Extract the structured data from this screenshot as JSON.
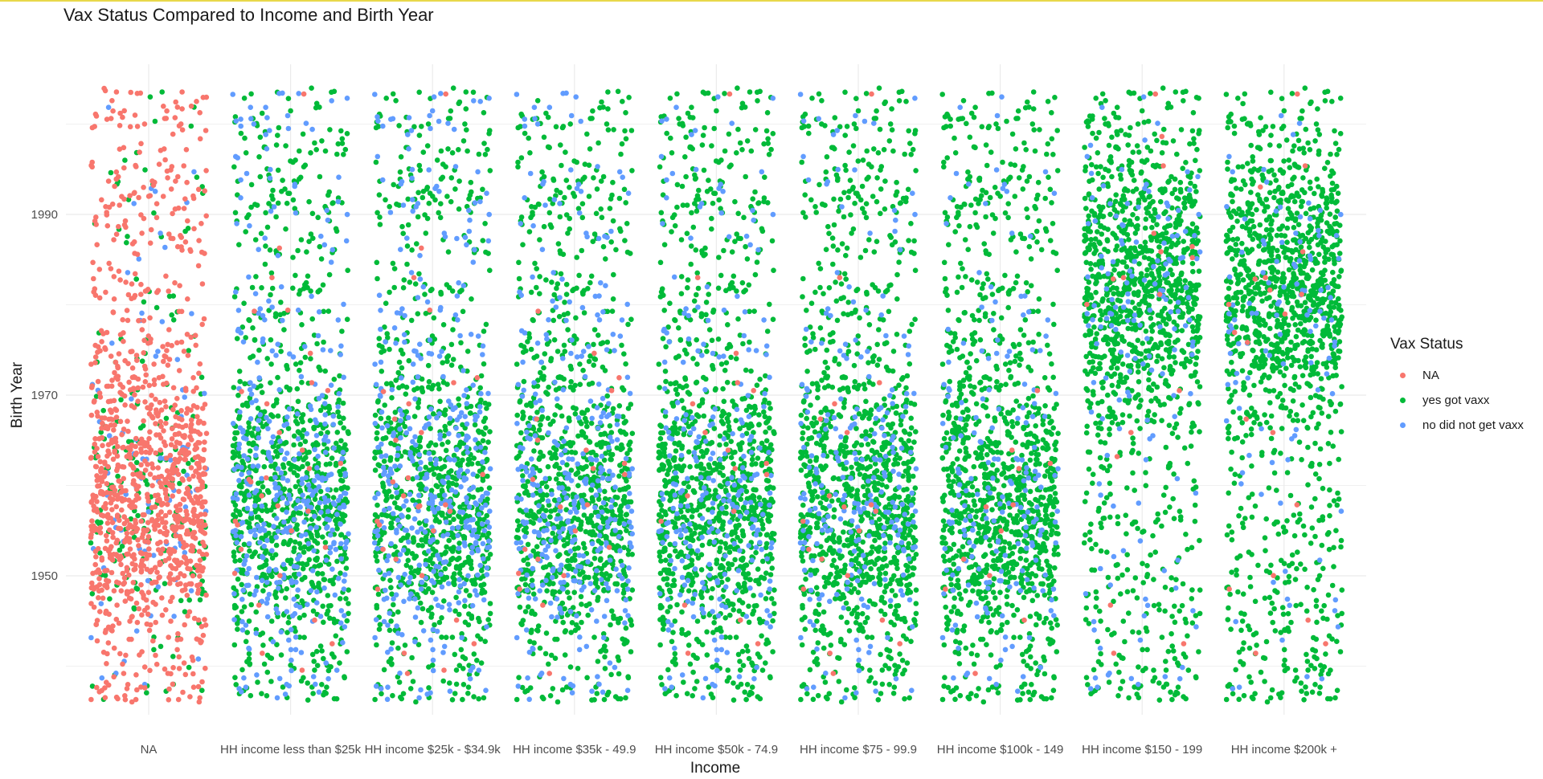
{
  "chart_data": {
    "type": "scatter",
    "title": "Vax Status Compared to Income and Birth Year",
    "xlabel": "Income",
    "ylabel": "Birth Year",
    "categories": [
      "NA",
      "HH income less than $25k",
      "HH income $25k - $34.9k",
      "HH income $35k - 49.9",
      "HH income $50k - 74.9",
      "HH income $75 - 99.9",
      "HH income $100k - 149",
      "HH income $150 - 199",
      "HH income $200k +"
    ],
    "yticks": [
      1950,
      1970,
      1990
    ],
    "ylim": [
      1935,
      2005
    ],
    "grid": true,
    "jitter": true,
    "legend": {
      "title": "Vax Status",
      "position": "right",
      "entries": [
        {
          "label": "NA",
          "color": "#F8766D"
        },
        {
          "label": "yes got vaxx",
          "color": "#00BA38"
        },
        {
          "label": "no did not get vaxx",
          "color": "#619CFF"
        }
      ]
    },
    "series": [
      {
        "name": "NA",
        "color": "#F8766D",
        "share_by_category": [
          0.8,
          0.02,
          0.02,
          0.02,
          0.015,
          0.015,
          0.01,
          0.015,
          0.015
        ]
      },
      {
        "name": "yes got vaxx",
        "color": "#00BA38",
        "share_by_category": [
          0.14,
          0.68,
          0.66,
          0.7,
          0.79,
          0.8,
          0.85,
          0.87,
          0.9
        ]
      },
      {
        "name": "no did not get vaxx",
        "color": "#619CFF",
        "share_by_category": [
          0.06,
          0.3,
          0.32,
          0.28,
          0.195,
          0.185,
          0.14,
          0.115,
          0.085
        ]
      }
    ]
  }
}
